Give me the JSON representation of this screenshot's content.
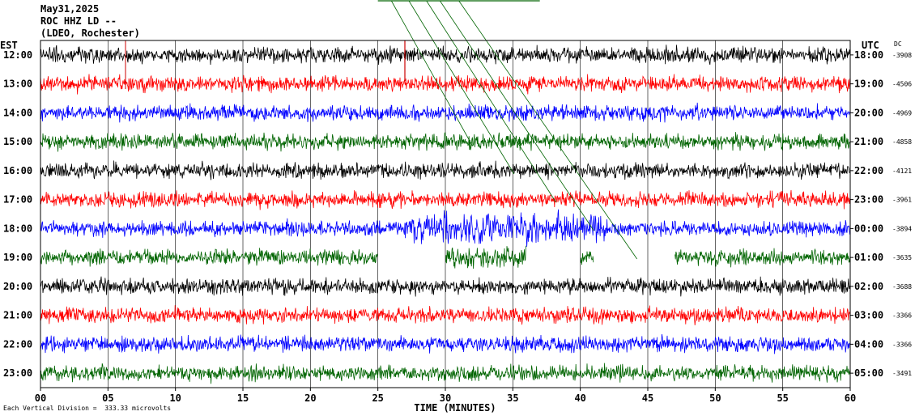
{
  "header": {
    "date": "May31,2025",
    "station": "ROC HHZ LD --",
    "network": "(LDEO, Rochester)"
  },
  "left_axis_label": "EST",
  "right_axis_label": "UTC",
  "dc_label": "DC",
  "footer_note": "Each Vertical Division =  333.33 microvolts",
  "chart_data": {
    "type": "line",
    "xlabel": "TIME (MINUTES)",
    "xlim": [
      0,
      60
    ],
    "x_ticks": [
      "00",
      "05",
      "10",
      "15",
      "20",
      "25",
      "30",
      "35",
      "40",
      "45",
      "50",
      "55",
      "60"
    ],
    "colors": [
      "#000000",
      "#ff0000",
      "#0000ff",
      "#006400"
    ],
    "rows": [
      {
        "est": "12:00",
        "utc": "18:00",
        "dc": "-3908"
      },
      {
        "est": "13:00",
        "utc": "19:00",
        "dc": "-4506"
      },
      {
        "est": "14:00",
        "utc": "20:00",
        "dc": "-4969"
      },
      {
        "est": "15:00",
        "utc": "21:00",
        "dc": "-4858"
      },
      {
        "est": "16:00",
        "utc": "22:00",
        "dc": "-4121"
      },
      {
        "est": "17:00",
        "utc": "23:00",
        "dc": "-3961"
      },
      {
        "est": "18:00",
        "utc": "00:00",
        "dc": "-3894"
      },
      {
        "est": "19:00",
        "utc": "01:00",
        "dc": "-3635"
      },
      {
        "est": "20:00",
        "utc": "02:00",
        "dc": "-3688"
      },
      {
        "est": "21:00",
        "utc": "03:00",
        "dc": "-3366"
      },
      {
        "est": "22:00",
        "utc": "04:00",
        "dc": "-3366"
      },
      {
        "est": "23:00",
        "utc": "05:00",
        "dc": "-3491"
      }
    ],
    "data_gap_minutes": [
      [
        25,
        30
      ],
      [
        36,
        40
      ],
      [
        41,
        47
      ]
    ],
    "earthquake_signal_minutes": [
      27,
      42
    ],
    "grid": true,
    "vertical_gridlines_every_minutes": 5
  }
}
